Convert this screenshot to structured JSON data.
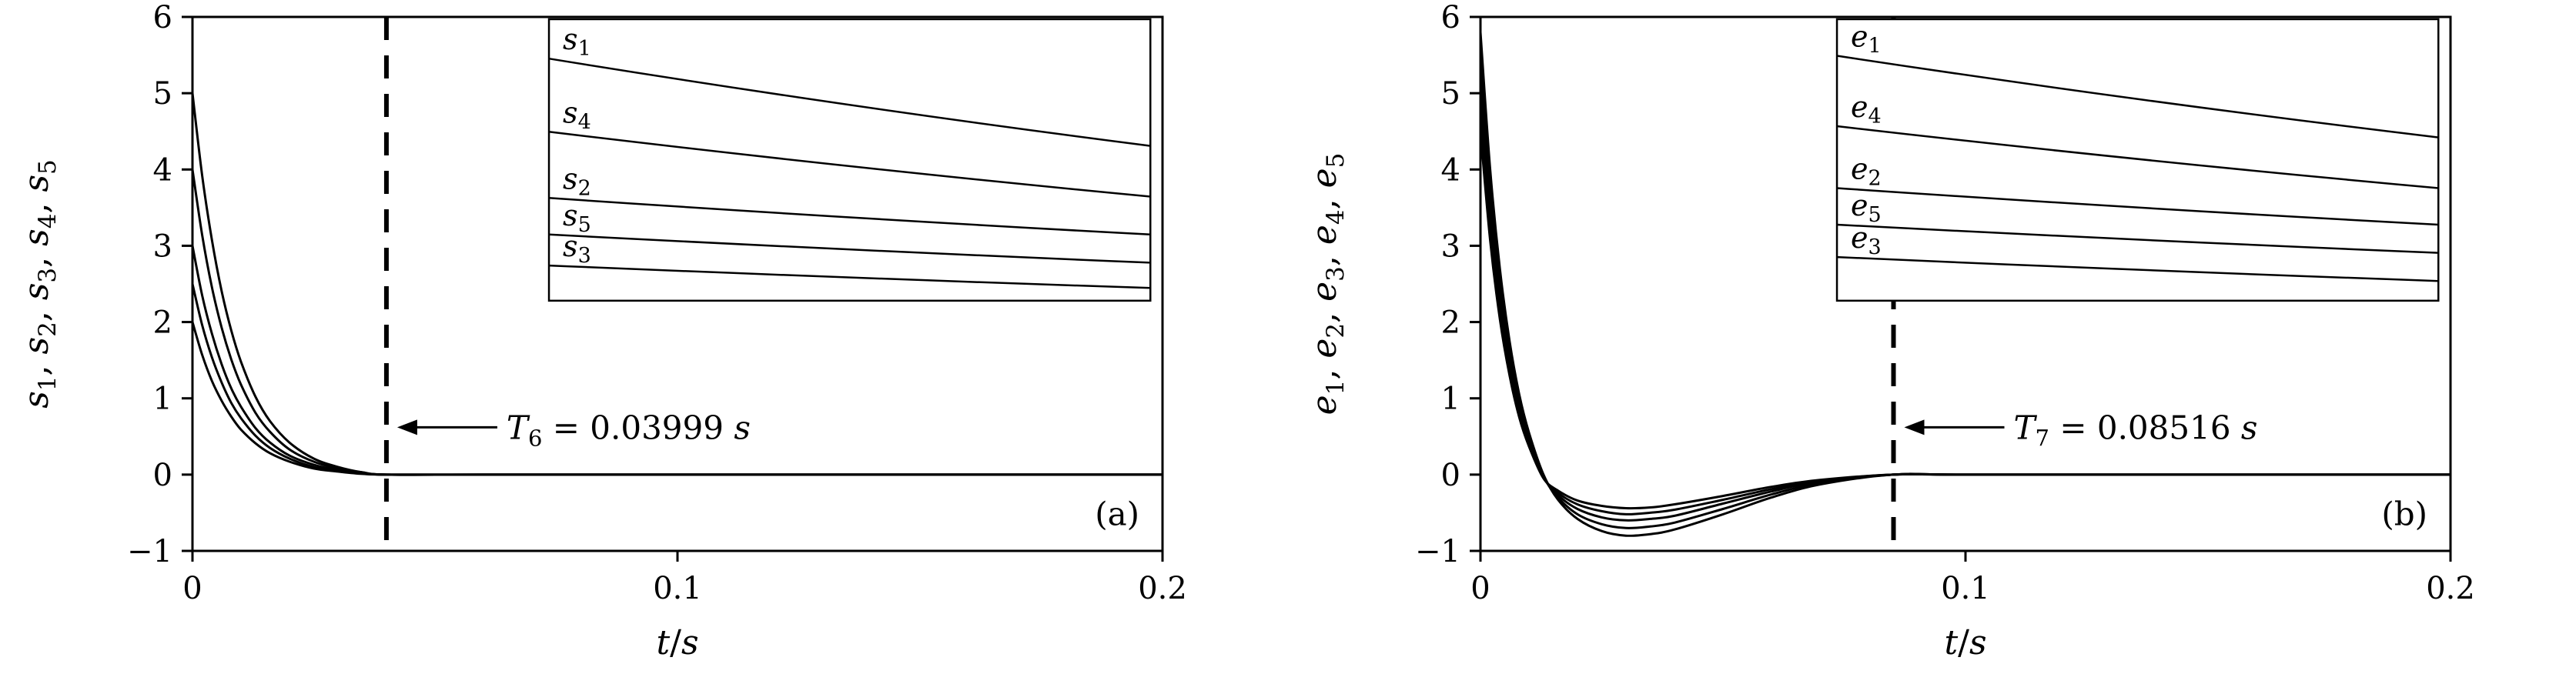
{
  "figure": {
    "background": "#ffffff",
    "line_color": "#000000"
  },
  "chart_data": [
    {
      "type": "line",
      "panel_label": "(a)",
      "xlabel": "t/s",
      "ylabel": "s_1, s_2, s_3, s_4, s_5",
      "xlim": [
        0,
        0.2
      ],
      "ylim": [
        -1,
        6
      ],
      "xticks": [
        0,
        0.1,
        0.2
      ],
      "xtick_labels": [
        "0",
        "0.1",
        "0.2"
      ],
      "yticks": [
        -1,
        0,
        1,
        2,
        3,
        4,
        5,
        6
      ],
      "ytick_labels": [
        "−1",
        "0",
        "1",
        "2",
        "3",
        "4",
        "5",
        "6"
      ],
      "grid": false,
      "legend": "none",
      "settling": {
        "x": 0.03999,
        "label": "T_6 = 0.03999 s",
        "arrow_y": 0.62
      },
      "x": [
        0,
        0.002,
        0.004,
        0.006,
        0.008,
        0.01,
        0.013,
        0.016,
        0.02,
        0.025,
        0.03,
        0.035,
        0.04,
        0.06,
        0.1,
        0.15,
        0.2
      ],
      "series": [
        {
          "name": "s_1",
          "values": [
            5.0,
            3.92,
            3.08,
            2.41,
            1.89,
            1.48,
            1.02,
            0.7,
            0.42,
            0.21,
            0.1,
            0.03,
            0,
            0,
            0,
            0,
            0
          ]
        },
        {
          "name": "s_4",
          "values": [
            4.0,
            3.14,
            2.46,
            1.93,
            1.51,
            1.18,
            0.81,
            0.56,
            0.33,
            0.17,
            0.08,
            0.03,
            0,
            0,
            0,
            0,
            0
          ]
        },
        {
          "name": "s_2",
          "values": [
            3.0,
            2.35,
            1.85,
            1.45,
            1.13,
            0.89,
            0.61,
            0.42,
            0.25,
            0.13,
            0.06,
            0.02,
            0,
            0,
            0,
            0,
            0
          ]
        },
        {
          "name": "s_5",
          "values": [
            2.5,
            1.96,
            1.54,
            1.21,
            0.94,
            0.74,
            0.51,
            0.35,
            0.21,
            0.1,
            0.05,
            0.02,
            0,
            0,
            0,
            0,
            0
          ]
        },
        {
          "name": "s_3",
          "values": [
            2.0,
            1.57,
            1.23,
            0.97,
            0.76,
            0.59,
            0.41,
            0.28,
            0.17,
            0.08,
            0.04,
            0.01,
            0,
            0,
            0,
            0,
            0
          ]
        }
      ],
      "inset": {
        "x0": 0.0735,
        "x1": 0.1975,
        "y0": 2.28,
        "y1": 5.97,
        "lines": [
          {
            "label": "s_1",
            "start": 0.14,
            "end": 0.45
          },
          {
            "label": "s_4",
            "start": 0.4,
            "end": 0.63
          },
          {
            "label": "s_2",
            "start": 0.635,
            "end": 0.765
          },
          {
            "label": "s_5",
            "start": 0.765,
            "end": 0.865
          },
          {
            "label": "s_3",
            "start": 0.875,
            "end": 0.955
          }
        ]
      }
    },
    {
      "type": "line",
      "panel_label": "(b)",
      "xlabel": "t/s",
      "ylabel": "e_1, e_2, e_3, e_4, e_5",
      "xlim": [
        0,
        0.2
      ],
      "ylim": [
        -1,
        6
      ],
      "xticks": [
        0,
        0.1,
        0.2
      ],
      "xtick_labels": [
        "0",
        "0.1",
        "0.2"
      ],
      "yticks": [
        -1,
        0,
        1,
        2,
        3,
        4,
        5,
        6
      ],
      "ytick_labels": [
        "−1",
        "0",
        "1",
        "2",
        "3",
        "4",
        "5",
        "6"
      ],
      "grid": false,
      "legend": "none",
      "settling": {
        "x": 0.08516,
        "label": "T_7 = 0.08516 s",
        "arrow_y": 0.62
      },
      "x": [
        0,
        0.002,
        0.004,
        0.006,
        0.008,
        0.01,
        0.013,
        0.016,
        0.02,
        0.025,
        0.03,
        0.035,
        0.04,
        0.05,
        0.06,
        0.07,
        0.085,
        0.1,
        0.15,
        0.2
      ],
      "series": [
        {
          "name": "e_1",
          "values": [
            5.8,
            4.0,
            2.7,
            1.75,
            1.05,
            0.55,
            0.0,
            -0.33,
            -0.58,
            -0.74,
            -0.8,
            -0.78,
            -0.72,
            -0.52,
            -0.3,
            -0.13,
            0,
            0,
            0,
            0
          ]
        },
        {
          "name": "e_4",
          "values": [
            5.45,
            3.75,
            2.52,
            1.62,
            0.96,
            0.49,
            -0.02,
            -0.3,
            -0.52,
            -0.65,
            -0.7,
            -0.68,
            -0.63,
            -0.45,
            -0.26,
            -0.11,
            0,
            0,
            0,
            0
          ]
        },
        {
          "name": "e_2",
          "values": [
            5.1,
            3.5,
            2.34,
            1.5,
            0.88,
            0.44,
            -0.03,
            -0.27,
            -0.45,
            -0.56,
            -0.6,
            -0.58,
            -0.54,
            -0.38,
            -0.22,
            -0.09,
            0,
            0,
            0,
            0
          ]
        },
        {
          "name": "e_5",
          "values": [
            4.78,
            3.27,
            2.18,
            1.39,
            0.81,
            0.4,
            -0.04,
            -0.24,
            -0.39,
            -0.48,
            -0.52,
            -0.5,
            -0.46,
            -0.33,
            -0.19,
            -0.08,
            0,
            0,
            0,
            0
          ]
        },
        {
          "name": "e_3",
          "values": [
            4.5,
            3.07,
            2.04,
            1.3,
            0.75,
            0.37,
            -0.05,
            -0.21,
            -0.34,
            -0.41,
            -0.44,
            -0.43,
            -0.39,
            -0.28,
            -0.16,
            -0.07,
            0,
            0,
            0,
            0
          ]
        }
      ],
      "inset": {
        "x0": 0.0735,
        "x1": 0.1975,
        "y0": 2.28,
        "y1": 5.97,
        "lines": [
          {
            "label": "e_1",
            "start": 0.13,
            "end": 0.42
          },
          {
            "label": "e_4",
            "start": 0.38,
            "end": 0.6
          },
          {
            "label": "e_2",
            "start": 0.6,
            "end": 0.73
          },
          {
            "label": "e_5",
            "start": 0.73,
            "end": 0.83
          },
          {
            "label": "e_3",
            "start": 0.845,
            "end": 0.93
          }
        ]
      }
    }
  ]
}
